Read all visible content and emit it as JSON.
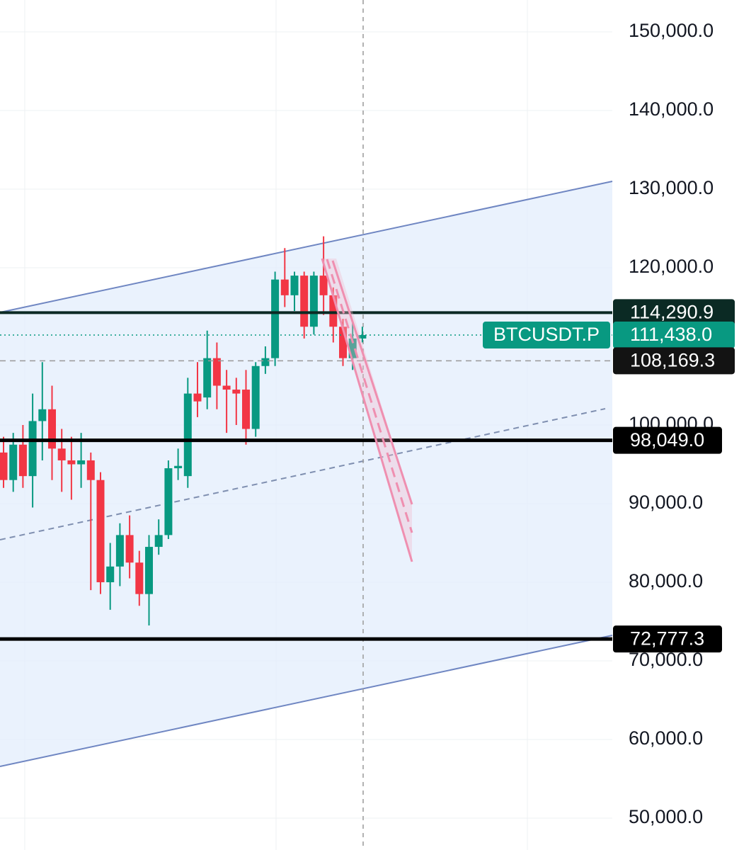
{
  "chart_data": {
    "type": "candlestick",
    "symbol": "BTCUSDT.P",
    "up_color": "#089981",
    "down_color": "#f23645",
    "open": [
      96500,
      93000,
      97500,
      93500,
      100500,
      102000,
      97000,
      95500,
      95000,
      95500,
      93000,
      80000,
      82000,
      86000,
      82500,
      78500,
      84500,
      86000,
      94500,
      93500,
      104000,
      103500,
      108500,
      105000,
      104500,
      104500,
      99500,
      107500,
      108500,
      118500,
      116500,
      119000,
      112500,
      119000,
      116500,
      112500,
      108500,
      111000
    ],
    "high": [
      98500,
      99000,
      100000,
      104000,
      108000,
      105000,
      99500,
      98500,
      99000,
      96500,
      94000,
      85000,
      87500,
      88500,
      84000,
      86000,
      88000,
      95500,
      97000,
      106000,
      108000,
      112000,
      110500,
      107000,
      106000,
      107000,
      108000,
      110000,
      119500,
      122500,
      119500,
      119500,
      119500,
      124000,
      117500,
      113500,
      113000,
      112500
    ],
    "low": [
      92000,
      91500,
      92000,
      89500,
      95500,
      93000,
      91500,
      90500,
      92000,
      79000,
      78500,
      76500,
      79500,
      80500,
      77000,
      74500,
      83500,
      85500,
      93000,
      92000,
      101000,
      102000,
      102000,
      99000,
      100000,
      97500,
      98500,
      106500,
      107500,
      115000,
      114500,
      111000,
      111500,
      114000,
      110500,
      107500,
      107000,
      110500
    ],
    "close": [
      93000,
      97500,
      93500,
      100500,
      102000,
      97000,
      95500,
      95000,
      95500,
      93000,
      80000,
      82000,
      86000,
      82500,
      78500,
      84500,
      86000,
      94500,
      94800,
      104000,
      103000,
      108500,
      105000,
      104500,
      104000,
      99500,
      107500,
      108500,
      118500,
      116500,
      119000,
      112500,
      119000,
      116500,
      112500,
      108500,
      111000,
      111438
    ],
    "ylim": [
      45946,
      154054
    ],
    "yticks": [
      {
        "value": 150000,
        "label": "150,000.0"
      },
      {
        "value": 140000,
        "label": "140,000.0"
      },
      {
        "value": 130000,
        "label": "130,000.0"
      },
      {
        "value": 120000,
        "label": "120,000.0"
      },
      {
        "value": 100000,
        "label": "100,000.0"
      },
      {
        "value": 90000,
        "label": "90,000.0"
      },
      {
        "value": 80000,
        "label": "80,000.0"
      },
      {
        "value": 70000,
        "label": "70,000.0"
      },
      {
        "value": 60000,
        "label": "60,000.0"
      },
      {
        "value": 50000,
        "label": "50,000.0"
      }
    ],
    "grid": true,
    "price_lines": [
      {
        "value": 114290.9,
        "label": "114,290.9",
        "color": "#0b2a24"
      },
      {
        "value": 111438.0,
        "label": "111,438.0",
        "color": "#089981"
      },
      {
        "value": 108169.3,
        "label": "108,169.3",
        "color": "#131313"
      },
      {
        "value": 98049.0,
        "label": "98,049.0",
        "color": "#000000"
      },
      {
        "value": 72777.3,
        "label": "72,777.3",
        "color": "#000000"
      }
    ]
  }
}
